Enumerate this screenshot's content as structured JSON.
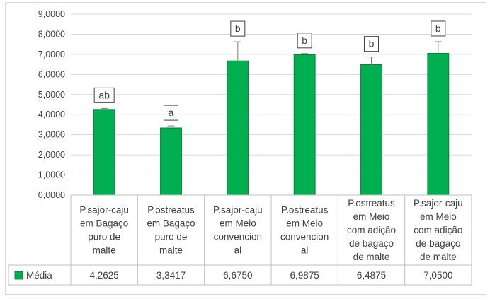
{
  "chart_data": {
    "type": "bar",
    "categories": [
      [
        "P.sajor-caju",
        "em Bagaço",
        "puro de",
        "malte"
      ],
      [
        "P.ostreatus",
        "em Bagaço",
        "puro de",
        "malte"
      ],
      [
        "P.sajor-caju",
        "em Meio",
        "convencion",
        "al"
      ],
      [
        "P.ostreatus",
        "em Meio",
        "convencion",
        "al"
      ],
      [
        "P.ostreatus",
        "em Meio",
        "com adição",
        "de bagaço",
        "de malte"
      ],
      [
        "P.sajor-caju",
        "em Meio",
        "com adição",
        "de bagaço",
        "de malte"
      ]
    ],
    "series": [
      {
        "name": "Média",
        "values": [
          4.2625,
          3.3417,
          6.675,
          6.9875,
          6.4875,
          7.05
        ],
        "value_labels": [
          "4,2625",
          "3,3417",
          "6,6750",
          "6,9875",
          "6,4875",
          "7,0500"
        ],
        "error_upper": [
          0.05,
          0.1,
          0.95,
          0.05,
          0.38,
          0.58
        ],
        "color": "#00b050"
      }
    ],
    "annotations": [
      "ab",
      "a",
      "b",
      "b",
      "b",
      "b"
    ],
    "y_ticks": [
      "0,0000",
      "1,0000",
      "2,0000",
      "3,0000",
      "4,0000",
      "5,0000",
      "6,0000",
      "7,0000",
      "8,0000",
      "9,0000"
    ],
    "ylim": [
      0,
      9
    ],
    "grid": true,
    "data_table": true,
    "title": "",
    "xlabel": "",
    "ylabel": ""
  }
}
